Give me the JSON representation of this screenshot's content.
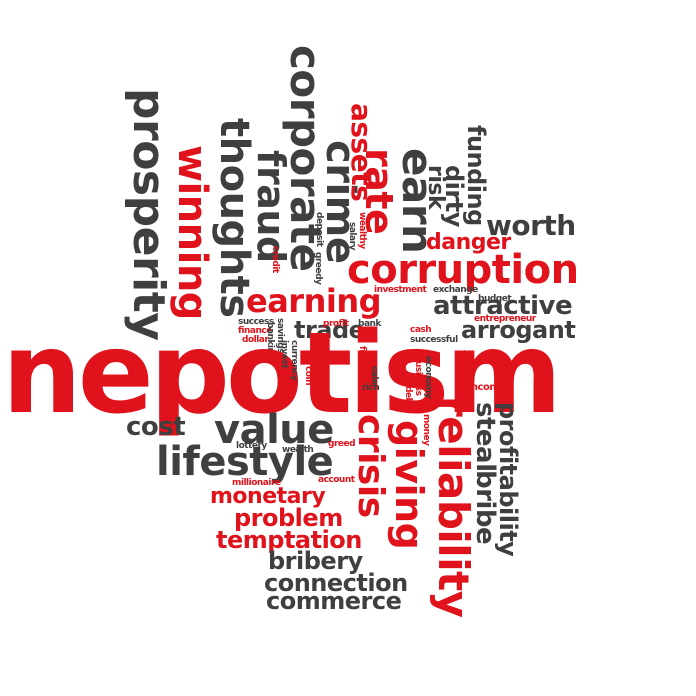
{
  "main_word": "nepotism",
  "colors": {
    "accent_red": "#e0121b",
    "text_gray": "#3f3f3f",
    "background": "#ffffff"
  },
  "words": {
    "prosperity": "prosperity",
    "winning": "winning",
    "thoughts": "thoughts",
    "fraud": "fraud",
    "corporate": "corporate",
    "crime": "crime",
    "assets": "assets",
    "rate": "rate",
    "earn": "earn",
    "risk": "risk",
    "dirty": "dirty",
    "funding": "funding",
    "worth": "worth",
    "danger": "danger",
    "corruption": "corruption",
    "earning": "earning",
    "attractive": "attractive",
    "arrogant": "arrogant",
    "trade": "trade",
    "investment": "investment",
    "exchange": "exchange",
    "budget": "budget",
    "entrepreneur": "entrepreneur",
    "success_top": "success",
    "finance": "finance",
    "dollar": "dollar",
    "savings": "savings",
    "banking": "banking",
    "profit": "profit",
    "bank": "bank",
    "cash": "cash",
    "successful": "successful",
    "credit": "credit",
    "deposit": "deposit",
    "greedy": "greedy",
    "salary": "salary",
    "wealthy": "wealthy",
    "cost": "cost",
    "value": "value",
    "lifestyle": "lifestyle",
    "lottery": "lottery",
    "wealth": "wealth",
    "greed": "greed",
    "millionaire": "millionaire",
    "account": "account",
    "crisis": "crisis",
    "giving": "giving",
    "reliability": "reliability",
    "steal": "steal",
    "bribe": "bribe",
    "profitability": "profitability",
    "monetary": "monetary",
    "problem": "problem",
    "temptation": "temptation",
    "bribery": "bribery",
    "connection": "connection",
    "commerce": "commerce",
    "luxury": "luxury",
    "coin": "coin",
    "currency": "currency",
    "invest": "invest",
    "financial": "financial",
    "rich": "rich",
    "sale": "sale",
    "business": "business",
    "debt": "debt",
    "economy": "economy",
    "treasure": "treasure",
    "income": "income",
    "money": "money"
  }
}
